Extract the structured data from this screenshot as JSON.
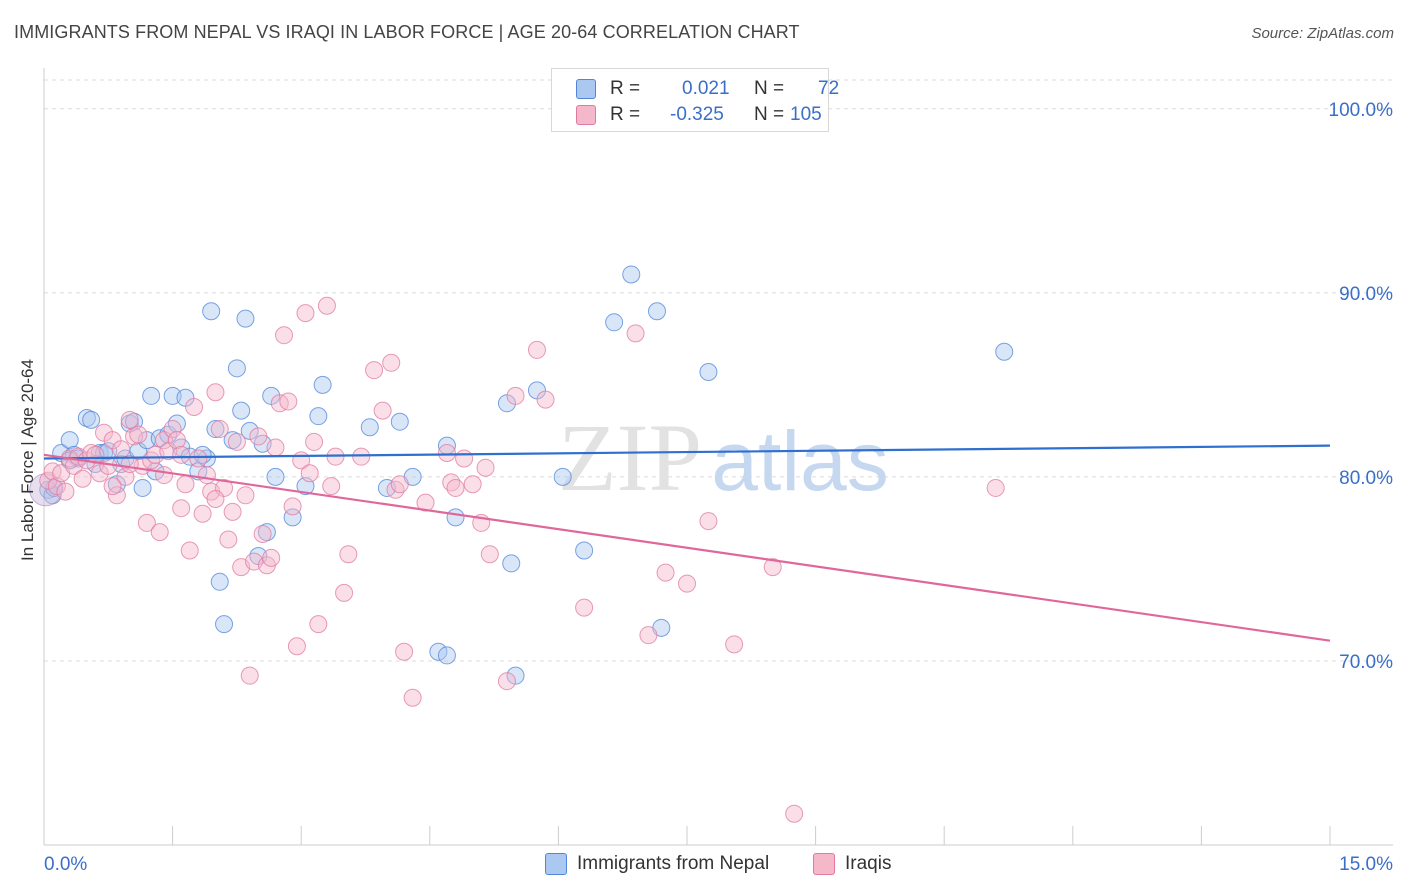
{
  "title": "IMMIGRANTS FROM NEPAL VS IRAQI IN LABOR FORCE | AGE 20-64 CORRELATION CHART",
  "source": "Source: ZipAtlas.com",
  "watermark": {
    "zip": "ZIP",
    "atlas": "atlas"
  },
  "legend": {
    "series1": {
      "r_label": "R =",
      "r_value": "0.021",
      "n_label": "N =",
      "n_value": "72",
      "color": "#aac8f0"
    },
    "series2": {
      "r_label": "R =",
      "r_value": "-0.325",
      "n_label": "N =",
      "n_value": "105",
      "color": "#f5b8cb"
    }
  },
  "bottom_legend": [
    {
      "label": "Immigrants from Nepal",
      "color": "#aac8f0"
    },
    {
      "label": "Iraqis",
      "color": "#f5b8cb"
    }
  ],
  "chart_data": {
    "type": "scatter",
    "title": "IMMIGRANTS FROM NEPAL VS IRAQI IN LABOR FORCE | AGE 20-64 CORRELATION CHART",
    "xlabel": "",
    "ylabel": "In Labor Force | Age 20-64",
    "xlim": [
      0,
      15
    ],
    "ylim": [
      60,
      102
    ],
    "x_tick_labels": [
      "0.0%",
      "15.0%"
    ],
    "y_ticks": [
      70,
      80,
      90,
      100
    ],
    "y_tick_labels": [
      "70.0%",
      "80.0%",
      "90.0%",
      "100.0%"
    ],
    "grid": true,
    "series": [
      {
        "name": "Immigrants from Nepal",
        "color": "#4f86d9",
        "fill": "#aac8f0",
        "trend": {
          "x": [
            0,
            15
          ],
          "y": [
            81.0,
            81.7
          ]
        },
        "points": [
          [
            0.05,
            79.3
          ],
          [
            0.1,
            79.0
          ],
          [
            0.12,
            79.4
          ],
          [
            0.2,
            81.3
          ],
          [
            0.3,
            82.0
          ],
          [
            0.35,
            81.2
          ],
          [
            0.4,
            81.0
          ],
          [
            0.5,
            83.2
          ],
          [
            0.55,
            83.1
          ],
          [
            0.65,
            81.3
          ],
          [
            0.7,
            81.3
          ],
          [
            0.75,
            81.4
          ],
          [
            0.85,
            79.6
          ],
          [
            0.9,
            80.7
          ],
          [
            0.95,
            81.0
          ],
          [
            1.0,
            82.9
          ],
          [
            1.05,
            83.0
          ],
          [
            1.1,
            81.4
          ],
          [
            1.15,
            79.4
          ],
          [
            1.2,
            82.0
          ],
          [
            1.25,
            84.4
          ],
          [
            1.3,
            80.3
          ],
          [
            1.35,
            82.1
          ],
          [
            1.45,
            82.3
          ],
          [
            1.5,
            84.4
          ],
          [
            1.55,
            82.9
          ],
          [
            1.6,
            81.6
          ],
          [
            1.65,
            84.3
          ],
          [
            1.7,
            81.1
          ],
          [
            1.8,
            80.3
          ],
          [
            1.9,
            81.0
          ],
          [
            1.95,
            89.0
          ],
          [
            2.0,
            82.6
          ],
          [
            2.05,
            74.3
          ],
          [
            2.1,
            72.0
          ],
          [
            2.2,
            82.0
          ],
          [
            2.25,
            85.9
          ],
          [
            2.3,
            83.6
          ],
          [
            2.35,
            88.6
          ],
          [
            2.4,
            82.5
          ],
          [
            2.5,
            75.7
          ],
          [
            2.55,
            81.8
          ],
          [
            2.6,
            77.0
          ],
          [
            2.65,
            84.4
          ],
          [
            2.7,
            80.0
          ],
          [
            2.9,
            77.8
          ],
          [
            3.05,
            79.5
          ],
          [
            3.2,
            83.3
          ],
          [
            3.25,
            85.0
          ],
          [
            3.8,
            82.7
          ],
          [
            4.0,
            79.4
          ],
          [
            4.15,
            83.0
          ],
          [
            4.3,
            80.0
          ],
          [
            4.6,
            70.5
          ],
          [
            4.7,
            70.3
          ],
          [
            4.7,
            81.7
          ],
          [
            4.8,
            77.8
          ],
          [
            5.4,
            84.0
          ],
          [
            5.45,
            75.3
          ],
          [
            5.5,
            69.2
          ],
          [
            5.75,
            84.7
          ],
          [
            6.05,
            80.0
          ],
          [
            6.3,
            76.0
          ],
          [
            6.65,
            88.4
          ],
          [
            6.85,
            91.0
          ],
          [
            7.15,
            89.0
          ],
          [
            7.2,
            71.8
          ],
          [
            7.75,
            85.7
          ],
          [
            11.2,
            86.8
          ],
          [
            0.3,
            80.9
          ],
          [
            0.6,
            80.7
          ],
          [
            1.85,
            81.2
          ]
        ]
      },
      {
        "name": "Iraqis",
        "color": "#e07aa0",
        "fill": "#f5b8cb",
        "trend": {
          "x": [
            0,
            15
          ],
          "y": [
            81.2,
            71.1
          ]
        },
        "points": [
          [
            0.05,
            79.8
          ],
          [
            0.1,
            80.3
          ],
          [
            0.15,
            79.5
          ],
          [
            0.2,
            80.2
          ],
          [
            0.25,
            79.2
          ],
          [
            0.3,
            81.0
          ],
          [
            0.35,
            80.6
          ],
          [
            0.4,
            81.1
          ],
          [
            0.5,
            80.9
          ],
          [
            0.55,
            81.3
          ],
          [
            0.6,
            81.2
          ],
          [
            0.65,
            80.2
          ],
          [
            0.7,
            82.4
          ],
          [
            0.75,
            80.6
          ],
          [
            0.8,
            82.0
          ],
          [
            0.85,
            79.0
          ],
          [
            0.9,
            81.5
          ],
          [
            0.95,
            80.0
          ],
          [
            1.0,
            83.1
          ],
          [
            1.05,
            82.2
          ],
          [
            1.1,
            82.3
          ],
          [
            1.15,
            80.6
          ],
          [
            1.2,
            77.5
          ],
          [
            1.25,
            80.9
          ],
          [
            1.3,
            81.2
          ],
          [
            1.35,
            77.0
          ],
          [
            1.4,
            82.0
          ],
          [
            1.45,
            81.4
          ],
          [
            1.5,
            82.6
          ],
          [
            1.55,
            82.0
          ],
          [
            1.6,
            81.2
          ],
          [
            1.65,
            79.6
          ],
          [
            1.7,
            76.0
          ],
          [
            1.75,
            83.8
          ],
          [
            1.8,
            81.0
          ],
          [
            1.85,
            78.0
          ],
          [
            1.9,
            80.1
          ],
          [
            1.95,
            79.2
          ],
          [
            2.0,
            84.6
          ],
          [
            2.05,
            82.6
          ],
          [
            2.1,
            79.4
          ],
          [
            2.15,
            76.6
          ],
          [
            2.2,
            78.1
          ],
          [
            2.25,
            81.9
          ],
          [
            2.3,
            75.1
          ],
          [
            2.35,
            79.0
          ],
          [
            2.4,
            69.2
          ],
          [
            2.45,
            75.4
          ],
          [
            2.5,
            82.2
          ],
          [
            2.6,
            75.2
          ],
          [
            2.65,
            75.6
          ],
          [
            2.7,
            81.6
          ],
          [
            2.75,
            84.0
          ],
          [
            2.8,
            87.7
          ],
          [
            2.85,
            84.1
          ],
          [
            2.9,
            78.4
          ],
          [
            2.95,
            70.8
          ],
          [
            3.0,
            80.9
          ],
          [
            3.05,
            88.9
          ],
          [
            3.1,
            80.2
          ],
          [
            3.15,
            81.9
          ],
          [
            3.2,
            72.0
          ],
          [
            3.3,
            89.3
          ],
          [
            3.35,
            79.5
          ],
          [
            3.5,
            73.7
          ],
          [
            3.55,
            75.8
          ],
          [
            3.7,
            81.1
          ],
          [
            3.85,
            85.8
          ],
          [
            3.95,
            83.6
          ],
          [
            4.05,
            86.2
          ],
          [
            4.1,
            79.3
          ],
          [
            4.15,
            79.6
          ],
          [
            4.2,
            70.5
          ],
          [
            4.3,
            68.0
          ],
          [
            4.45,
            78.6
          ],
          [
            4.7,
            81.3
          ],
          [
            4.75,
            79.7
          ],
          [
            4.8,
            79.4
          ],
          [
            5.1,
            77.5
          ],
          [
            5.15,
            80.5
          ],
          [
            5.2,
            75.8
          ],
          [
            5.4,
            68.9
          ],
          [
            5.5,
            84.4
          ],
          [
            5.75,
            86.9
          ],
          [
            5.85,
            84.2
          ],
          [
            6.3,
            72.9
          ],
          [
            6.9,
            87.8
          ],
          [
            7.05,
            71.4
          ],
          [
            7.25,
            74.8
          ],
          [
            7.5,
            74.2
          ],
          [
            7.75,
            77.6
          ],
          [
            8.05,
            70.9
          ],
          [
            8.5,
            75.1
          ],
          [
            8.75,
            61.7
          ],
          [
            11.1,
            79.4
          ],
          [
            0.45,
            79.9
          ],
          [
            1.0,
            80.7
          ],
          [
            1.6,
            78.3
          ],
          [
            2.0,
            78.8
          ],
          [
            3.4,
            81.1
          ],
          [
            0.8,
            79.5
          ],
          [
            1.4,
            80.1
          ],
          [
            2.55,
            76.9
          ],
          [
            4.9,
            81.0
          ],
          [
            5.0,
            79.6
          ]
        ]
      }
    ]
  }
}
